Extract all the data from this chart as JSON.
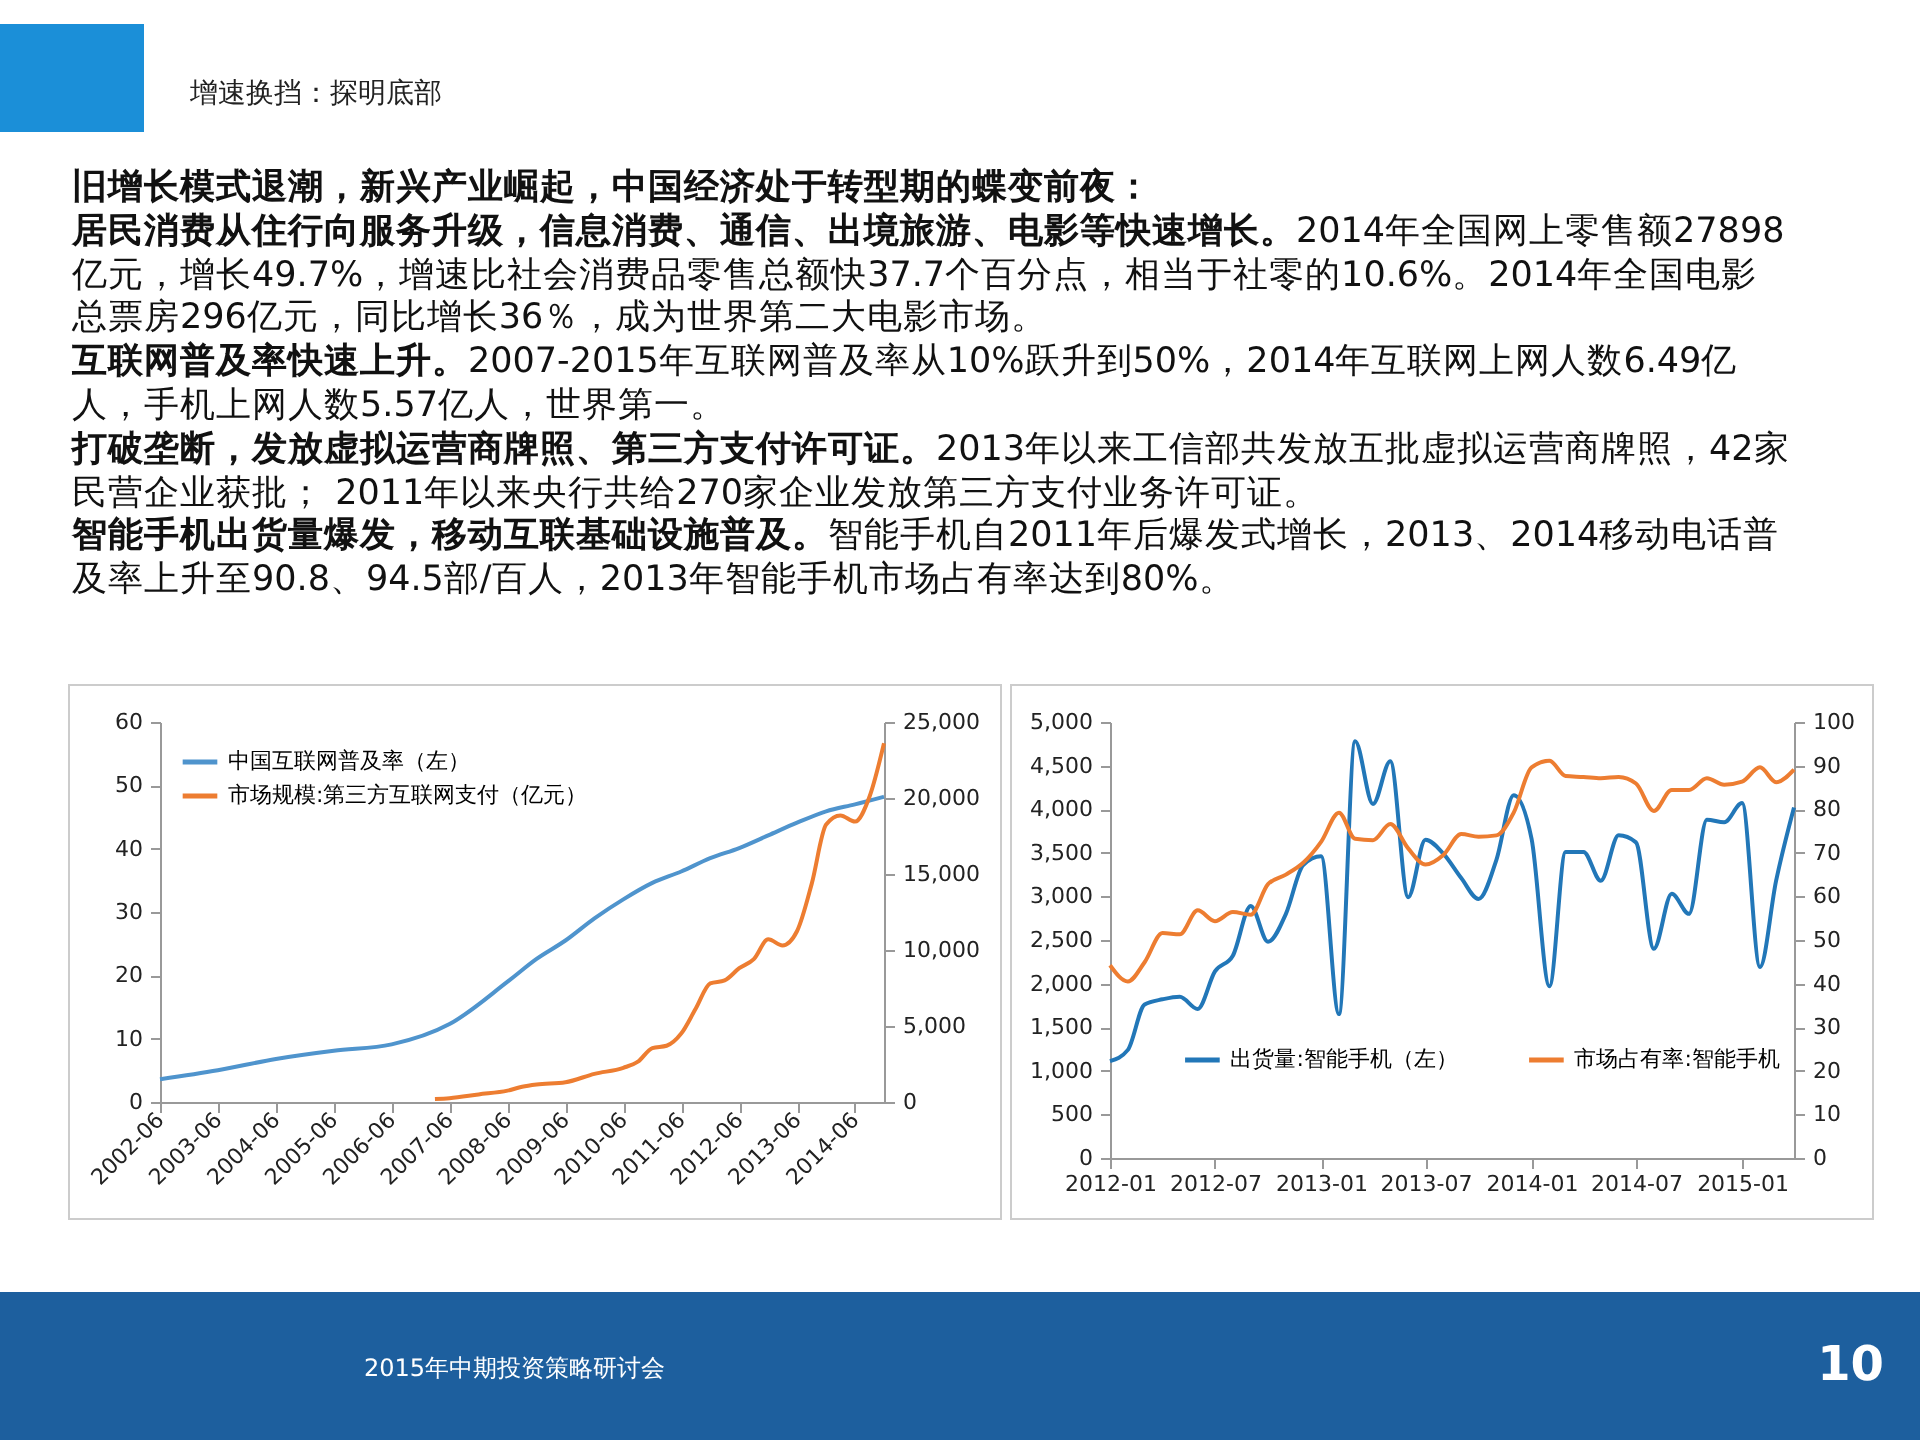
{
  "chart_data": [
    {
      "type": "other",
      "title": "增速换挡：探明底部",
      "annotations": [
        "旧增长模式退潮，新兴产业崛起，中国经济处于转型期的蝶变前夜：",
        "居民消费从住行向服务升级，信息消费、通信、出境旅游、电影等快速增长。",
        "2014年全国网上零售额27898亿元，增长49.7%，增速比社会消费品零售总额快37.7个百分点，相当于社零的10.6%。2014年全国电影总票房296亿元，同比增长36％，成为世界第二大电影市场。",
        "互联网普及率快速上升。",
        "2007-2015年互联网普及率从10%跃升到50%，2014年互联网上网人数6.49亿人，手机上网人数5.57亿人，世界第一。",
        "打破垄断，发放虚拟运营商牌照、第三方支付许可证。",
        "2013年以来工信部共发放五批虚拟运营商牌照，42家民营企业获批； 2011年以来央行共给270家企业发放第三方支付业务许可证。",
        "智能手机出货量爆发，移动互联基础设施普及。",
        "智能手机自2011年后爆发式增长，2013、2014移动电话普及率上升至90.8、94.5部/百人，2013年智能手机市场占有率达到80%。"
      ]
    },
    {
      "type": "line",
      "legend": "top left",
      "xlim": [
        "2002-06",
        "2014-12"
      ],
      "xticks": [
        "2002-06",
        "2003-06",
        "2004-06",
        "2005-06",
        "2006-06",
        "2007-06",
        "2008-06",
        "2009-06",
        "2010-06",
        "2011-06",
        "2012-06",
        "2013-06",
        "2014-06"
      ],
      "ylim": [
        0,
        60
      ],
      "yticks": [
        0,
        10,
        20,
        30,
        40,
        50,
        60
      ],
      "y2lim": [
        0,
        25000
      ],
      "y2ticks": [
        {
          "value": 0,
          "label": "0"
        },
        {
          "value": 5000,
          "label": "5,000"
        },
        {
          "value": 10000,
          "label": "10,000"
        },
        {
          "value": 15000,
          "label": "15,000"
        },
        {
          "value": 20000,
          "label": "20,000"
        },
        {
          "value": 25000,
          "label": "25,000"
        }
      ],
      "series": [
        {
          "name": "中国互联网普及率（左）",
          "color": "#4f94cd",
          "x": [
            "2002-06",
            "2003-06",
            "2004-06",
            "2005-06",
            "2006-06",
            "2007-06",
            "2008-06",
            "2008-12",
            "2009-06",
            "2009-12",
            "2010-06",
            "2010-12",
            "2011-06",
            "2011-12",
            "2012-06",
            "2012-12",
            "2013-06",
            "2013-12",
            "2014-06",
            "2014-12"
          ],
          "values": [
            3.6,
            5.0,
            6.8,
            8.1,
            9.1,
            12.3,
            19.0,
            22.6,
            25.5,
            29.0,
            32.0,
            34.6,
            36.4,
            38.5,
            40.1,
            42.1,
            44.1,
            45.9,
            47.0,
            48.2
          ]
        },
        {
          "name": "市场规模:第三方互联网支付（亿元）",
          "color": "#ed7d31",
          "axis": "y2",
          "x": [
            "2007-03",
            "2007-06",
            "2007-12",
            "2008-06",
            "2008-09",
            "2008-12",
            "2009-06",
            "2009-12",
            "2010-06",
            "2010-09",
            "2010-12",
            "2011-03",
            "2011-06",
            "2011-09",
            "2011-12",
            "2012-03",
            "2012-06",
            "2012-09",
            "2012-12",
            "2013-03",
            "2013-06",
            "2013-09",
            "2013-12",
            "2014-03",
            "2014-06",
            "2014-09",
            "2014-12"
          ],
          "values": [
            200,
            250,
            500,
            750,
            1000,
            1150,
            1300,
            1850,
            2250,
            2650,
            3550,
            3700,
            4500,
            6150,
            7800,
            8000,
            8800,
            9400,
            10700,
            10300,
            11250,
            14350,
            18250,
            18850,
            18450,
            20100,
            23600
          ]
        }
      ]
    },
    {
      "type": "line",
      "legend": "bottom",
      "xlim": [
        "2012-01",
        "2015-04"
      ],
      "xticks": [
        "2012-01",
        "2012-07",
        "2013-01",
        "2013-07",
        "2014-01",
        "2014-07",
        "2015-01"
      ],
      "ylim": [
        0,
        5000
      ],
      "yticks": [
        {
          "value": 0,
          "label": "0"
        },
        {
          "value": 500,
          "label": "500"
        },
        {
          "value": 1000,
          "label": "1,000"
        },
        {
          "value": 1500,
          "label": "1,500"
        },
        {
          "value": 2000,
          "label": "2,000"
        },
        {
          "value": 2500,
          "label": "2,500"
        },
        {
          "value": 3000,
          "label": "3,000"
        },
        {
          "value": 3500,
          "label": "3,500"
        },
        {
          "value": 4000,
          "label": "4,000"
        },
        {
          "value": 4500,
          "label": "4,500"
        },
        {
          "value": 5000,
          "label": "5,000"
        }
      ],
      "y2lim": [
        0,
        100
      ],
      "y2ticks": [
        0,
        10,
        20,
        30,
        40,
        50,
        60,
        70,
        80,
        90,
        100
      ],
      "x": [
        "2012-01",
        "2012-02",
        "2012-03",
        "2012-04",
        "2012-05",
        "2012-06",
        "2012-07",
        "2012-08",
        "2012-09",
        "2012-10",
        "2012-11",
        "2012-12",
        "2013-01",
        "2013-02",
        "2013-03",
        "2013-04",
        "2013-05",
        "2013-06",
        "2013-07",
        "2013-08",
        "2013-09",
        "2013-10",
        "2013-11",
        "2013-12",
        "2014-01",
        "2014-02",
        "2014-03",
        "2014-04",
        "2014-05",
        "2014-06",
        "2014-07",
        "2014-08",
        "2014-09",
        "2014-10",
        "2014-11",
        "2014-12",
        "2015-01",
        "2015-02",
        "2015-03",
        "2015-04"
      ],
      "series": [
        {
          "name": "出货量:智能手机（左）",
          "color": "#2277b8",
          "values": [
            1110,
            1240,
            1760,
            1820,
            1850,
            1710,
            2140,
            2320,
            2890,
            2480,
            2800,
            3360,
            3460,
            1650,
            4780,
            4060,
            4550,
            2990,
            3650,
            3490,
            3210,
            2970,
            3420,
            4160,
            3660,
            1970,
            3510,
            3510,
            3180,
            3700,
            3620,
            2400,
            3030,
            2800,
            3880,
            3850,
            4070,
            2190,
            3180,
            4020
          ]
        },
        {
          "name": "市场占有率:智能手机",
          "color": "#ed7d31",
          "axis": "y2",
          "values": [
            44.2,
            40.5,
            44.9,
            51.6,
            51.3,
            56.8,
            54.3,
            56.4,
            55.8,
            62.8,
            65.0,
            67.7,
            72.5,
            79.2,
            73.2,
            72.9,
            76.6,
            71.0,
            67.3,
            69.5,
            74.3,
            73.7,
            74.0,
            79.2,
            89.6,
            91.1,
            87.6,
            87.4,
            87.1,
            87.4,
            85.9,
            79.6,
            84.4,
            84.4,
            87.1,
            85.6,
            86.3,
            89.6,
            86.2,
            89.1
          ]
        }
      ]
    },
    {
      "type": "other",
      "annotations": [
        "2015年中期投资策略研讨会",
        "10"
      ]
    }
  ]
}
